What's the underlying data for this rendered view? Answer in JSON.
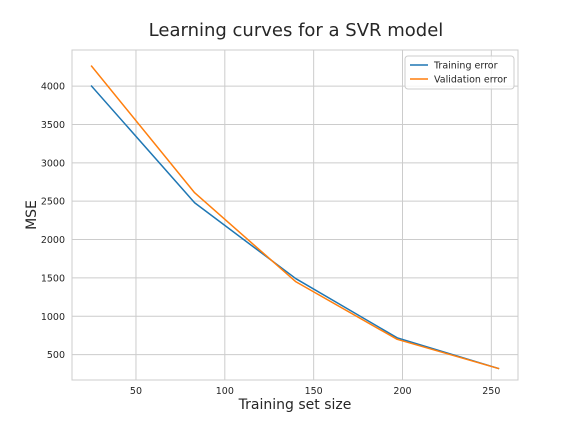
{
  "chart_data": {
    "type": "line",
    "title": "Learning curves for a SVR model",
    "xlabel": "Training set size",
    "ylabel": "MSE",
    "xlim": [
      14,
      265
    ],
    "ylim": [
      170,
      4470
    ],
    "xticks": [
      50,
      100,
      150,
      200,
      250
    ],
    "yticks": [
      500,
      1000,
      1500,
      2000,
      2500,
      3000,
      3500,
      4000
    ],
    "grid": true,
    "legend_position": "top-right",
    "series": [
      {
        "name": "Training error",
        "color": "#1f77b4",
        "x": [
          25,
          83,
          140,
          197,
          254
        ],
        "y": [
          4000,
          2480,
          1490,
          720,
          320
        ]
      },
      {
        "name": "Validation error",
        "color": "#ff7f0e",
        "x": [
          25,
          83,
          140,
          197,
          254
        ],
        "y": [
          4260,
          2610,
          1450,
          700,
          320
        ]
      }
    ]
  }
}
